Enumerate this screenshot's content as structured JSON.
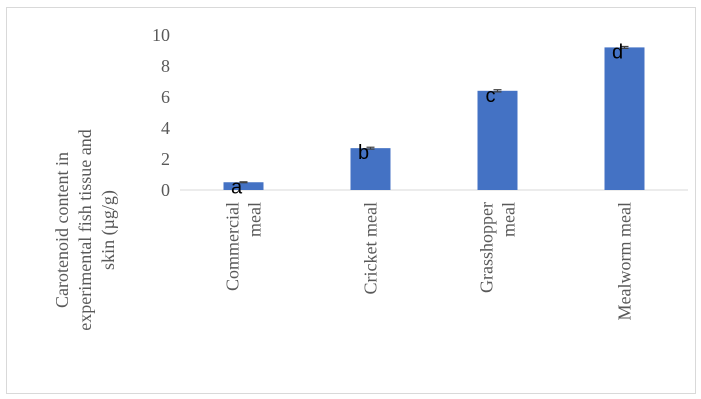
{
  "chart_data": {
    "type": "bar",
    "categories": [
      [
        "Commercial",
        "meal"
      ],
      [
        "Cricket meal"
      ],
      [
        "Grasshopper",
        "meal"
      ],
      [
        "Mealworm meal"
      ]
    ],
    "values": [
      0.5,
      2.7,
      6.4,
      9.2
    ],
    "error": [
      0.03,
      0.06,
      0.07,
      0.06
    ],
    "data_labels": [
      "a",
      "b",
      "c",
      "d"
    ],
    "ylabel": [
      "Carotenoid content in",
      "experimental fish tissue and",
      "skin (µg/g)"
    ],
    "ylim": [
      0,
      10
    ],
    "yticks": [
      0,
      2,
      4,
      6,
      8,
      10
    ],
    "grid": false,
    "bar_color": "#4472C4",
    "axis_color": "#d9d9d9",
    "text_color": "#595959"
  }
}
